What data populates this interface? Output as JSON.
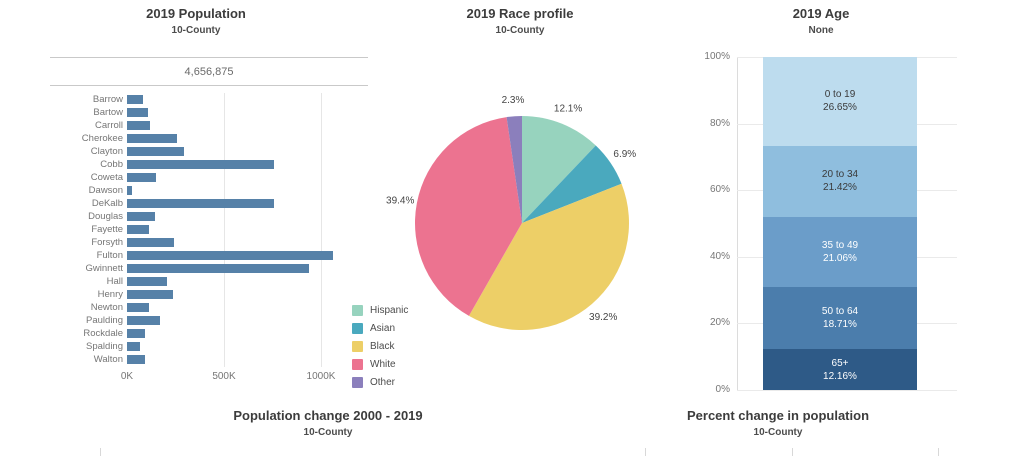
{
  "panels": {
    "population": {
      "title": "2019 Population",
      "subtitle": "10-County",
      "total": "4,656,875"
    },
    "race": {
      "title": "2019 Race profile",
      "subtitle": "10-County"
    },
    "age": {
      "title": "2019 Age",
      "subtitle": "None"
    }
  },
  "footer": {
    "population_change": {
      "title": "Population change 2000 - 2019",
      "subtitle": "10-County"
    },
    "percent_change": {
      "title": "Percent change in population",
      "subtitle": "10-County"
    }
  },
  "chart_data": [
    {
      "id": "population-by-county",
      "type": "bar",
      "orientation": "horizontal",
      "title": "2019 Population",
      "subtitle": "10-County",
      "total_label": "4,656,875",
      "categories": [
        "Barrow",
        "Bartow",
        "Carroll",
        "Cherokee",
        "Clayton",
        "Cobb",
        "Coweta",
        "Dawson",
        "DeKalb",
        "Douglas",
        "Fayette",
        "Forsyth",
        "Fulton",
        "Gwinnett",
        "Hall",
        "Henry",
        "Newton",
        "Paulding",
        "Rockdale",
        "Spalding",
        "Walton"
      ],
      "values": [
        83000,
        108000,
        120000,
        259000,
        292000,
        760000,
        148000,
        26000,
        760000,
        146000,
        114000,
        244000,
        1064000,
        936000,
        204000,
        235000,
        112000,
        169000,
        91000,
        67000,
        95000
      ],
      "x_ticks": [
        "0K",
        "500K",
        "1000K"
      ],
      "x_tick_values": [
        0,
        500000,
        1000000
      ],
      "xlim": [
        0,
        1100000
      ],
      "bar_color": "#5681a8",
      "grid": true
    },
    {
      "id": "race-profile",
      "type": "pie",
      "title": "2019 Race profile",
      "subtitle": "10-County",
      "labels": [
        "Hispanic",
        "Asian",
        "Black",
        "White",
        "Other"
      ],
      "values": [
        12.1,
        6.9,
        39.2,
        39.4,
        2.3
      ],
      "unit": "%",
      "colors": [
        "#97d3be",
        "#4aa9be",
        "#edcf67",
        "#ec7390",
        "#8b7fbc"
      ],
      "start_angle": "top",
      "direction": "clockwise",
      "legend_position": "bottom-left"
    },
    {
      "id": "age-distribution",
      "type": "bar",
      "stacked": true,
      "title": "2019 Age",
      "subtitle": "None",
      "categories": [
        "0 to 19",
        "20 to 34",
        "35 to 49",
        "50 to 64",
        "65+"
      ],
      "values": [
        26.65,
        21.42,
        21.06,
        18.71,
        12.16
      ],
      "unit": "%",
      "colors": [
        "#bddcee",
        "#8fbede",
        "#6b9dc9",
        "#4b7dac",
        "#2e5a87"
      ],
      "text_colors": [
        "#3a3a3a",
        "#3a3a3a",
        "#ffffff",
        "#ffffff",
        "#ffffff"
      ],
      "y_ticks": [
        "100%",
        "80%",
        "60%",
        "40%",
        "20%",
        "0%"
      ],
      "ylim": [
        0,
        100
      ],
      "grid": true
    }
  ]
}
